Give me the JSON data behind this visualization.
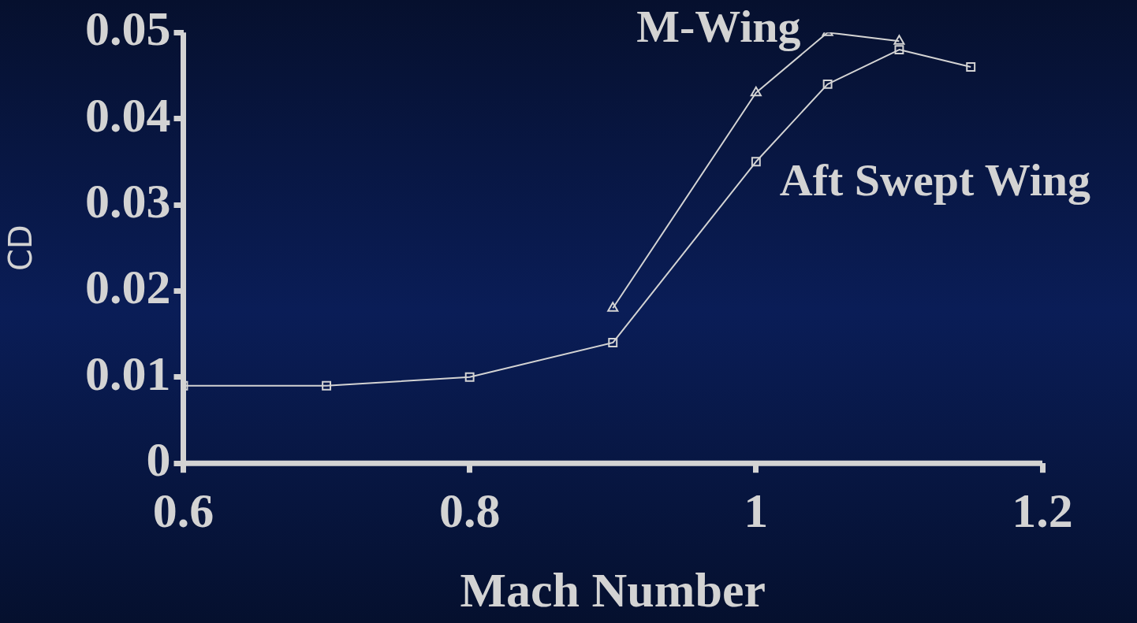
{
  "chart_data": {
    "type": "line",
    "xlabel": "Mach Number",
    "ylabel": "CD",
    "xlim": [
      0.6,
      1.2
    ],
    "xticks": [
      0.6,
      0.8,
      1,
      1.2
    ],
    "ylim": [
      0,
      0.05
    ],
    "yticks": [
      0,
      0.01,
      0.02,
      0.03,
      0.04,
      0.05
    ],
    "grid": false,
    "legend": false,
    "series": [
      {
        "name": "M-Wing",
        "color": "#d3d3d3",
        "marker": "triangle",
        "x": [
          0.9,
          1.0,
          1.05,
          1.1
        ],
        "values": [
          0.018,
          0.043,
          0.05,
          0.049
        ]
      },
      {
        "name": "Aft Swept Wing",
        "color": "#d3d3d3",
        "marker": "square",
        "x": [
          0.6,
          0.7,
          0.8,
          0.9,
          1.0,
          1.05,
          1.1,
          1.15
        ],
        "values": [
          0.009,
          0.009,
          0.01,
          0.014,
          0.035,
          0.044,
          0.048,
          0.046
        ]
      }
    ]
  }
}
